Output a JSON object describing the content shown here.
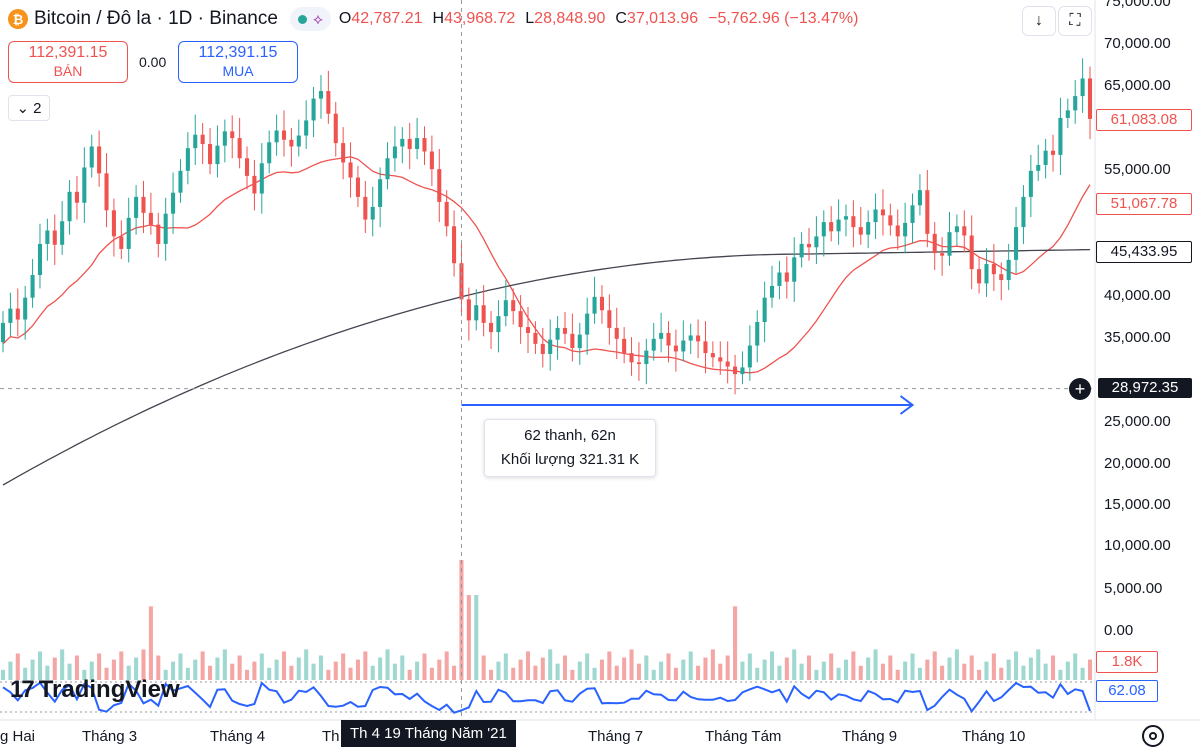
{
  "header": {
    "symbol_title": "Bitcoin / Đô la · 1D · Binance",
    "btc_glyph": "₿",
    "ohlc": {
      "o_label": "O",
      "o_value": "42,787.21",
      "h_label": "H",
      "h_value": "43,968.72",
      "l_label": "L",
      "l_value": "28,848.90",
      "c_label": "C",
      "c_value": "37,013.96",
      "change": "−5,762.96 (−13.47%)"
    }
  },
  "toolbar": {
    "download_icon": "↓",
    "fullscreen_icon": "⛶"
  },
  "trade": {
    "sell_price": "112,391.15",
    "sell_label": "BÁN",
    "spread": "0.00",
    "buy_price": "112,391.15",
    "buy_label": "MUA"
  },
  "collapse": {
    "count": "2",
    "chevron": "⌄"
  },
  "price_axis": [
    {
      "label": "75,000.00",
      "value": 75000
    },
    {
      "label": "70,000.00",
      "value": 70000
    },
    {
      "label": "65,000.00",
      "value": 65000
    },
    {
      "label": "55,000.00",
      "value": 55000
    },
    {
      "label": "40,000.00",
      "value": 40000
    },
    {
      "label": "35,000.00",
      "value": 35000
    },
    {
      "label": "25,000.00",
      "value": 25000
    },
    {
      "label": "20,000.00",
      "value": 20000
    },
    {
      "label": "15,000.00",
      "value": 15000
    },
    {
      "label": "10,000.00",
      "value": 10000
    },
    {
      "label": "5,000.00",
      "value": 5000
    },
    {
      "label": "0.00",
      "value": 0
    }
  ],
  "tags": {
    "last_price": "61,083.08",
    "ma_red": "51,067.78",
    "ma_black": "45,433.95",
    "crosshair_price": "28,972.35",
    "volume": "1.8K",
    "rsi": "62.08"
  },
  "measure": {
    "bars": "62 thanh, 62n",
    "volume": "Khối lượng 321.31 K"
  },
  "time_axis": [
    {
      "label": "g Hai"
    },
    {
      "label": "Tháng 3"
    },
    {
      "label": "Tháng 4"
    },
    {
      "label": "Th"
    },
    {
      "label": "Tháng 7"
    },
    {
      "label": "Tháng Tám"
    },
    {
      "label": "Tháng 9"
    },
    {
      "label": "Tháng 10"
    }
  ],
  "time_hover": "Th 4 19 Tháng Năm '21",
  "brand": {
    "name": "TradingView",
    "mark": "17"
  },
  "colors": {
    "up": "#26a69a",
    "down": "#ef5350",
    "ma_red": "#ef5350",
    "ma_black": "#434651",
    "rsi": "#2962ff",
    "measure": "#2962ff",
    "volume_up": "#9fd8d1",
    "volume_down": "#f4a6a4"
  },
  "chart_data": {
    "type": "candlestick",
    "ylim": [
      17000,
      75000
    ],
    "series": [
      {
        "name": "",
        "values": [
          [
            34500,
            36800
          ],
          [
            36800,
            38500
          ],
          [
            38500,
            37200
          ],
          [
            37200,
            39800
          ],
          [
            39800,
            42500
          ],
          [
            42500,
            46200
          ],
          [
            46200,
            47800
          ],
          [
            47800,
            46100
          ],
          [
            46100,
            48900
          ],
          [
            48900,
            52400
          ],
          [
            52400,
            51100
          ],
          [
            51100,
            55300
          ],
          [
            55300,
            57800
          ],
          [
            57800,
            54600
          ],
          [
            54600,
            50200
          ],
          [
            50200,
            47100
          ],
          [
            47100,
            45600
          ],
          [
            45600,
            49300
          ],
          [
            49300,
            51800
          ],
          [
            51800,
            49900
          ],
          [
            49900,
            48500
          ],
          [
            48500,
            46200
          ],
          [
            46200,
            49800
          ],
          [
            49800,
            52300
          ],
          [
            52300,
            54900
          ],
          [
            54900,
            57600
          ],
          [
            57600,
            59200
          ],
          [
            59200,
            58100
          ],
          [
            58100,
            55700
          ],
          [
            55700,
            57900
          ],
          [
            57900,
            59600
          ],
          [
            59600,
            58800
          ],
          [
            58800,
            56400
          ],
          [
            56400,
            54300
          ],
          [
            54300,
            52200
          ],
          [
            52200,
            55800
          ],
          [
            55800,
            58300
          ],
          [
            58300,
            59700
          ],
          [
            59700,
            58600
          ],
          [
            58600,
            57800
          ],
          [
            57800,
            59100
          ],
          [
            59100,
            60900
          ],
          [
            60900,
            63500
          ],
          [
            63500,
            64400
          ],
          [
            64400,
            61700
          ],
          [
            61700,
            58200
          ],
          [
            58200,
            55900
          ],
          [
            55900,
            54100
          ],
          [
            54100,
            51800
          ],
          [
            51800,
            49100
          ],
          [
            49100,
            50600
          ],
          [
            50600,
            53900
          ],
          [
            53900,
            56400
          ],
          [
            56400,
            57800
          ],
          [
            57800,
            58700
          ],
          [
            58700,
            57500
          ],
          [
            57500,
            58800
          ],
          [
            58800,
            57200
          ],
          [
            57200,
            55100
          ],
          [
            55100,
            51200
          ],
          [
            51200,
            48300
          ],
          [
            48300,
            43900
          ],
          [
            43900,
            39600
          ],
          [
            39600,
            37100
          ],
          [
            37100,
            38900
          ],
          [
            38900,
            36800
          ],
          [
            36800,
            35700
          ],
          [
            35700,
            37600
          ],
          [
            37600,
            39500
          ],
          [
            39500,
            38200
          ],
          [
            38200,
            36300
          ],
          [
            36300,
            35600
          ],
          [
            35600,
            34300
          ],
          [
            34300,
            33100
          ],
          [
            33100,
            34800
          ],
          [
            34800,
            36200
          ],
          [
            36200,
            35500
          ],
          [
            35500,
            33800
          ],
          [
            33800,
            35400
          ],
          [
            35400,
            37900
          ],
          [
            37900,
            39900
          ],
          [
            39900,
            38300
          ],
          [
            38300,
            36200
          ],
          [
            36200,
            34900
          ],
          [
            34900,
            33200
          ],
          [
            33200,
            32100
          ],
          [
            32100,
            31900
          ],
          [
            31900,
            33500
          ],
          [
            33500,
            34900
          ],
          [
            34900,
            35600
          ],
          [
            35600,
            34100
          ],
          [
            34100,
            33400
          ],
          [
            33400,
            34700
          ],
          [
            34700,
            35300
          ],
          [
            35300,
            34600
          ],
          [
            34600,
            33200
          ],
          [
            33200,
            32700
          ],
          [
            32700,
            32200
          ],
          [
            32200,
            31600
          ],
          [
            31600,
            30700
          ],
          [
            30700,
            31500
          ],
          [
            31500,
            34100
          ],
          [
            34100,
            36900
          ],
          [
            36900,
            39800
          ],
          [
            39800,
            41200
          ],
          [
            41200,
            42800
          ],
          [
            42800,
            41700
          ],
          [
            41700,
            44600
          ],
          [
            44600,
            46200
          ],
          [
            46200,
            45800
          ],
          [
            45800,
            47100
          ],
          [
            47100,
            48800
          ],
          [
            48800,
            47700
          ],
          [
            47700,
            49100
          ],
          [
            49100,
            49500
          ],
          [
            49500,
            48200
          ],
          [
            48200,
            47300
          ],
          [
            47300,
            48800
          ],
          [
            48800,
            50300
          ],
          [
            50300,
            49600
          ],
          [
            49600,
            48400
          ],
          [
            48400,
            47100
          ],
          [
            47100,
            48700
          ],
          [
            48700,
            50800
          ],
          [
            50800,
            52600
          ],
          [
            52600,
            47400
          ],
          [
            47400,
            45100
          ],
          [
            45100,
            44800
          ],
          [
            44800,
            47600
          ],
          [
            47600,
            48300
          ],
          [
            48300,
            47200
          ],
          [
            47200,
            43200
          ],
          [
            43200,
            41500
          ],
          [
            41500,
            43800
          ],
          [
            43800,
            42600
          ],
          [
            42600,
            41900
          ],
          [
            41900,
            44300
          ],
          [
            44300,
            48200
          ],
          [
            48200,
            51800
          ],
          [
            51800,
            54900
          ],
          [
            54900,
            55600
          ],
          [
            55600,
            57300
          ],
          [
            57300,
            56800
          ],
          [
            56800,
            61200
          ],
          [
            61200,
            62100
          ],
          [
            62100,
            63800
          ],
          [
            63800,
            65900
          ],
          [
            65900,
            61083
          ]
        ]
      }
    ]
  }
}
